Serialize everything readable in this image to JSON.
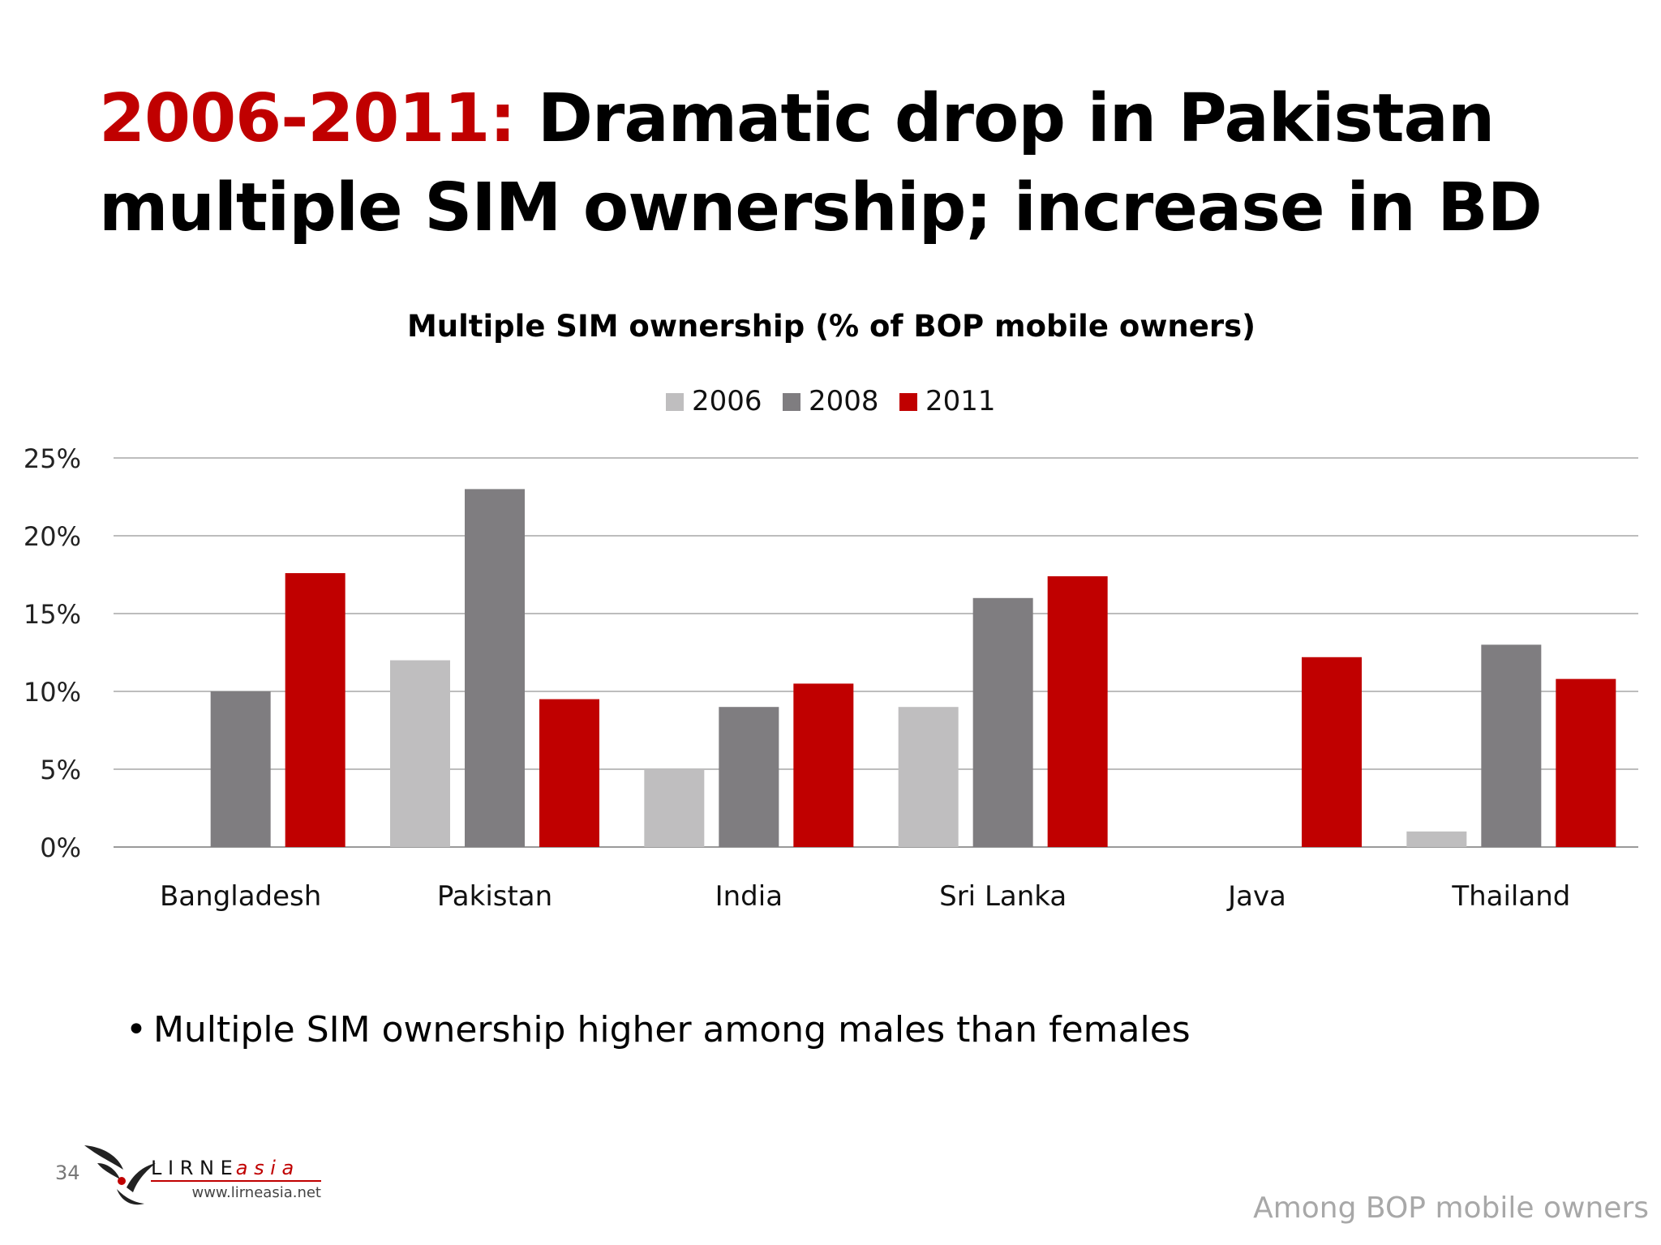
{
  "slide": {
    "title_highlight": "2006-2011:",
    "title_rest": " Dramatic drop in Pakistan  multiple SIM ownership; increase in BD",
    "bullet": "Multiple SIM ownership higher among males than females",
    "page_number": "34",
    "footnote": "Among BOP mobile owners",
    "logo_text_main": "L I R N E",
    "logo_text_accent": "a s i a",
    "logo_url": "www.lirneasia.net"
  },
  "chart_data": {
    "type": "bar",
    "title": "Multiple SIM ownership (% of BOP mobile owners)",
    "categories": [
      "Bangladesh",
      "Pakistan",
      "India",
      "Sri Lanka",
      "Java",
      "Thailand"
    ],
    "series": [
      {
        "name": "2006",
        "color": "#bfbebf",
        "values": [
          0,
          12,
          5,
          9,
          0,
          1
        ]
      },
      {
        "name": "2008",
        "color": "#7f7d80",
        "values": [
          10,
          23,
          9,
          16,
          0,
          13
        ]
      },
      {
        "name": "2011",
        "color": "#c00000",
        "values": [
          17.6,
          9.5,
          10.5,
          17.4,
          12.2,
          10.8
        ]
      }
    ],
    "ylim": [
      0,
      25
    ],
    "yticks": [
      0,
      5,
      10,
      15,
      20,
      25
    ],
    "ytick_labels": [
      "0%",
      "5%",
      "10%",
      "15%",
      "20%",
      "25%"
    ],
    "grid": true,
    "legend_position": "top-center"
  }
}
